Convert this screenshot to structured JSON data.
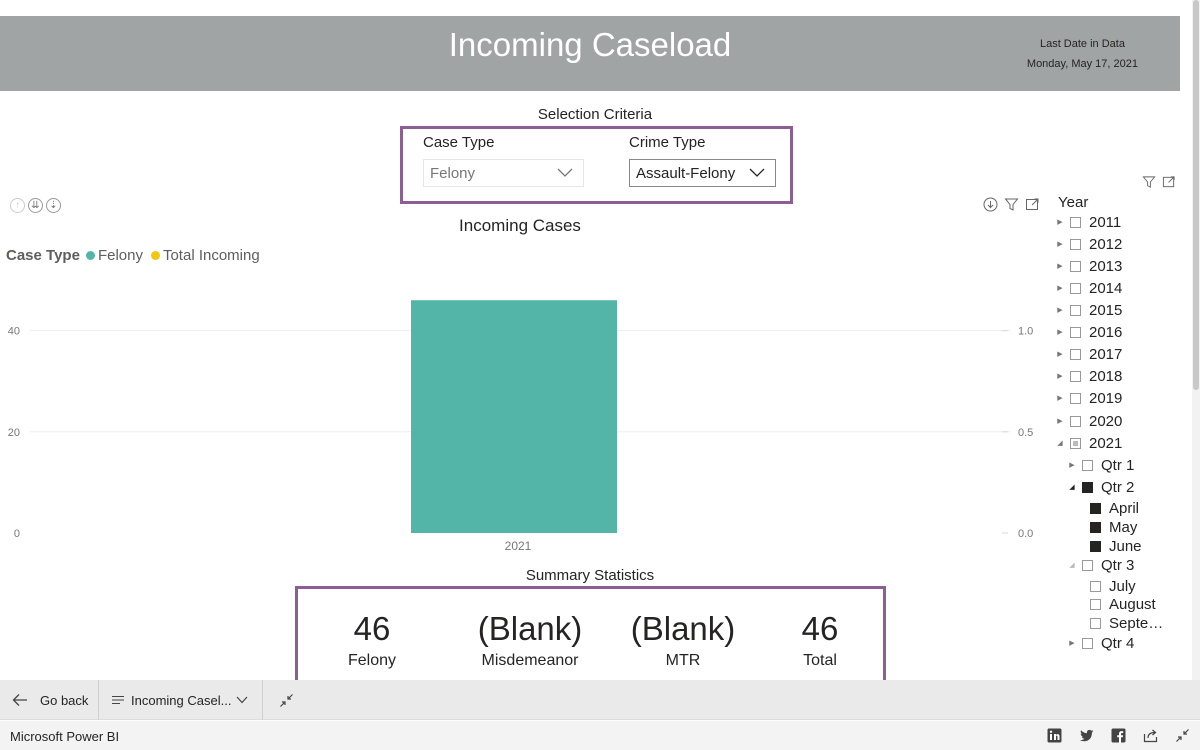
{
  "header": {
    "title": "Incoming Caseload",
    "last_date_label": "Last Date in Data",
    "last_date_value": "Monday, May 17, 2021"
  },
  "selection": {
    "title": "Selection Criteria",
    "case_type_label": "Case Type",
    "case_type_value": "Felony",
    "crime_type_label": "Crime Type",
    "crime_type_value": "Assault-Felony"
  },
  "chart": {
    "title": "Incoming Cases",
    "legend_title": "Case Type",
    "legend_items": [
      "Felony",
      "Total Incoming"
    ]
  },
  "chart_data": {
    "type": "bar",
    "title": "Incoming Cases",
    "categories": [
      "2021"
    ],
    "series": [
      {
        "name": "Felony",
        "values": [
          46
        ],
        "color": "#52b5a8"
      },
      {
        "name": "Total Incoming",
        "values": [
          null
        ],
        "color": "#f2c80f"
      }
    ],
    "y_left_ticks": [
      "0",
      "20",
      "40"
    ],
    "y_right_ticks": [
      "0.0",
      "0.5",
      "1.0"
    ],
    "ylim": [
      0,
      50
    ],
    "y2lim": [
      0,
      1.25
    ],
    "legend_position": "top-left",
    "grid": true
  },
  "summary": {
    "title": "Summary Statistics",
    "stats": [
      {
        "value": "46",
        "label": "Felony"
      },
      {
        "value": "(Blank)",
        "label": "Misdemeanor"
      },
      {
        "value": "(Blank)",
        "label": "MTR"
      },
      {
        "value": "46",
        "label": "Total"
      }
    ]
  },
  "slicer": {
    "title": "Year",
    "years": [
      "2011",
      "2012",
      "2013",
      "2014",
      "2015",
      "2016",
      "2017",
      "2018",
      "2019",
      "2020",
      "2021"
    ],
    "quarters": [
      "Qtr 1",
      "Qtr 2",
      "Qtr 3",
      "Qtr 4"
    ],
    "q2_months": [
      "April",
      "May",
      "June"
    ],
    "q3_months": [
      "July",
      "August",
      "Septe…"
    ]
  },
  "nav": {
    "go_back": "Go back",
    "page_name": "Incoming Casel..."
  },
  "footer": {
    "brand": "Microsoft Power BI"
  },
  "colors": {
    "header_bg": "#a0a4a5",
    "accent_border": "#8c5e94",
    "felony": "#52b5a8",
    "total_incoming": "#f2c80f"
  }
}
